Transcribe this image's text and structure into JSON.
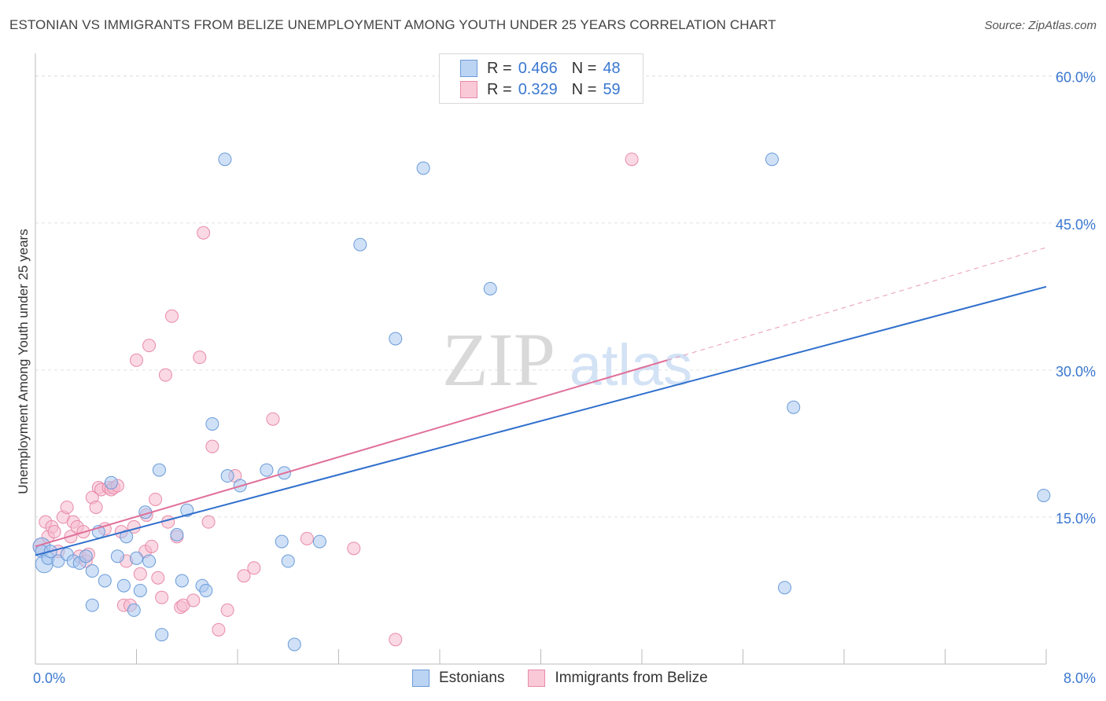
{
  "header": {
    "title": "ESTONIAN VS IMMIGRANTS FROM BELIZE UNEMPLOYMENT AMONG YOUTH UNDER 25 YEARS CORRELATION CHART",
    "source": "Source: ZipAtlas.com"
  },
  "legend_top": {
    "rows": [
      {
        "r_label": "R =",
        "r_value": "0.466",
        "n_label": "N =",
        "n_value": "48"
      },
      {
        "r_label": "R =",
        "r_value": "0.329",
        "n_label": "N =",
        "n_value": "59"
      }
    ]
  },
  "watermark": {
    "zip": "ZIP",
    "atlas": "atlas"
  },
  "colors": {
    "blue_fill": "#aac8f0",
    "blue_stroke": "#6a9bd8",
    "blue_line": "#2f6fcc",
    "pink_fill": "#f6b9cd",
    "pink_stroke": "#e88aa8",
    "pink_line": "#e0709a",
    "tick_label": "#3a78d0"
  },
  "chart_data": {
    "type": "scatter",
    "title": "ESTONIAN VS IMMIGRANTS FROM BELIZE UNEMPLOYMENT AMONG YOUTH UNDER 25 YEARS CORRELATION CHART",
    "xlabel": "",
    "ylabel": "Unemployment Among Youth under 25 years",
    "xlim": [
      0,
      8
    ],
    "ylim": [
      0,
      61.5
    ],
    "x_tick_labels": [
      "0.0%",
      "8.0%"
    ],
    "y_ticks": [
      15,
      30,
      45,
      60
    ],
    "y_tick_labels": [
      "15.0%",
      "30.0%",
      "45.0%",
      "60.0%"
    ],
    "grid": true,
    "legend_position": "bottom",
    "series": [
      {
        "name": "Estonians",
        "r": 0.466,
        "n": 48,
        "trend": {
          "x0": 0,
          "y0": 11.1,
          "x1": 8,
          "y1": 38.5
        },
        "points": [
          [
            0.05,
            12.0
          ],
          [
            0.05,
            11.5
          ],
          [
            0.07,
            10.2
          ],
          [
            0.1,
            10.8
          ],
          [
            0.12,
            11.5
          ],
          [
            0.18,
            10.5
          ],
          [
            0.25,
            11.2
          ],
          [
            0.3,
            10.5
          ],
          [
            0.35,
            10.3
          ],
          [
            0.4,
            11.0
          ],
          [
            0.45,
            9.5
          ],
          [
            0.5,
            13.5
          ],
          [
            0.55,
            8.5
          ],
          [
            0.6,
            18.5
          ],
          [
            0.65,
            11.0
          ],
          [
            0.7,
            8.0
          ],
          [
            0.72,
            13.0
          ],
          [
            0.78,
            5.5
          ],
          [
            0.8,
            10.8
          ],
          [
            0.83,
            7.5
          ],
          [
            0.87,
            15.5
          ],
          [
            0.9,
            10.5
          ],
          [
            0.98,
            19.8
          ],
          [
            1.0,
            3.0
          ],
          [
            1.12,
            13.2
          ],
          [
            1.16,
            8.5
          ],
          [
            1.2,
            15.7
          ],
          [
            1.32,
            8.0
          ],
          [
            1.35,
            7.5
          ],
          [
            1.4,
            24.5
          ],
          [
            1.5,
            51.5
          ],
          [
            1.52,
            19.2
          ],
          [
            1.62,
            18.2
          ],
          [
            1.83,
            19.8
          ],
          [
            1.95,
            12.5
          ],
          [
            1.97,
            19.5
          ],
          [
            2.0,
            10.5
          ],
          [
            2.05,
            2.0
          ],
          [
            2.25,
            12.5
          ],
          [
            2.57,
            42.8
          ],
          [
            2.85,
            33.2
          ],
          [
            3.07,
            50.6
          ],
          [
            3.6,
            38.3
          ],
          [
            5.83,
            51.5
          ],
          [
            5.93,
            7.8
          ],
          [
            6.0,
            26.2
          ],
          [
            7.98,
            17.2
          ],
          [
            0.45,
            6.0
          ]
        ]
      },
      {
        "name": "Immigrants from Belize",
        "r": 0.329,
        "n": 59,
        "trend": {
          "x0": 0,
          "y0": 12.0,
          "x1": 5.0,
          "y1": 31.0
        },
        "trend_dashed_to": {
          "x": 8,
          "y": 42.5
        },
        "points": [
          [
            0.05,
            12.0
          ],
          [
            0.08,
            14.5
          ],
          [
            0.1,
            13.0
          ],
          [
            0.13,
            14.0
          ],
          [
            0.15,
            13.5
          ],
          [
            0.18,
            11.5
          ],
          [
            0.22,
            15.0
          ],
          [
            0.25,
            16.0
          ],
          [
            0.28,
            13.0
          ],
          [
            0.3,
            14.5
          ],
          [
            0.33,
            14.0
          ],
          [
            0.35,
            11.0
          ],
          [
            0.38,
            13.5
          ],
          [
            0.4,
            10.5
          ],
          [
            0.42,
            11.2
          ],
          [
            0.45,
            17.0
          ],
          [
            0.48,
            16.0
          ],
          [
            0.5,
            18.0
          ],
          [
            0.52,
            17.8
          ],
          [
            0.55,
            13.8
          ],
          [
            0.58,
            18.0
          ],
          [
            0.6,
            17.8
          ],
          [
            0.62,
            18.0
          ],
          [
            0.65,
            18.2
          ],
          [
            0.68,
            13.5
          ],
          [
            0.7,
            6.0
          ],
          [
            0.72,
            10.5
          ],
          [
            0.75,
            6.0
          ],
          [
            0.78,
            14.0
          ],
          [
            0.8,
            31.0
          ],
          [
            0.83,
            9.2
          ],
          [
            0.87,
            11.5
          ],
          [
            0.88,
            15.2
          ],
          [
            0.9,
            32.5
          ],
          [
            0.92,
            12.0
          ],
          [
            0.95,
            16.8
          ],
          [
            0.97,
            8.8
          ],
          [
            1.0,
            6.8
          ],
          [
            1.03,
            29.5
          ],
          [
            1.05,
            14.5
          ],
          [
            1.08,
            35.5
          ],
          [
            1.12,
            13.0
          ],
          [
            1.15,
            5.8
          ],
          [
            1.17,
            6.0
          ],
          [
            1.25,
            6.5
          ],
          [
            1.3,
            31.3
          ],
          [
            1.33,
            44.0
          ],
          [
            1.37,
            14.5
          ],
          [
            1.4,
            22.2
          ],
          [
            1.45,
            3.5
          ],
          [
            1.52,
            5.5
          ],
          [
            1.58,
            19.2
          ],
          [
            1.65,
            9.0
          ],
          [
            1.73,
            9.8
          ],
          [
            1.88,
            25.0
          ],
          [
            2.15,
            12.8
          ],
          [
            2.52,
            11.8
          ],
          [
            2.85,
            2.5
          ],
          [
            4.72,
            51.5
          ]
        ]
      }
    ]
  },
  "legend_bottom": {
    "items": [
      "Estonians",
      "Immigrants from Belize"
    ]
  }
}
